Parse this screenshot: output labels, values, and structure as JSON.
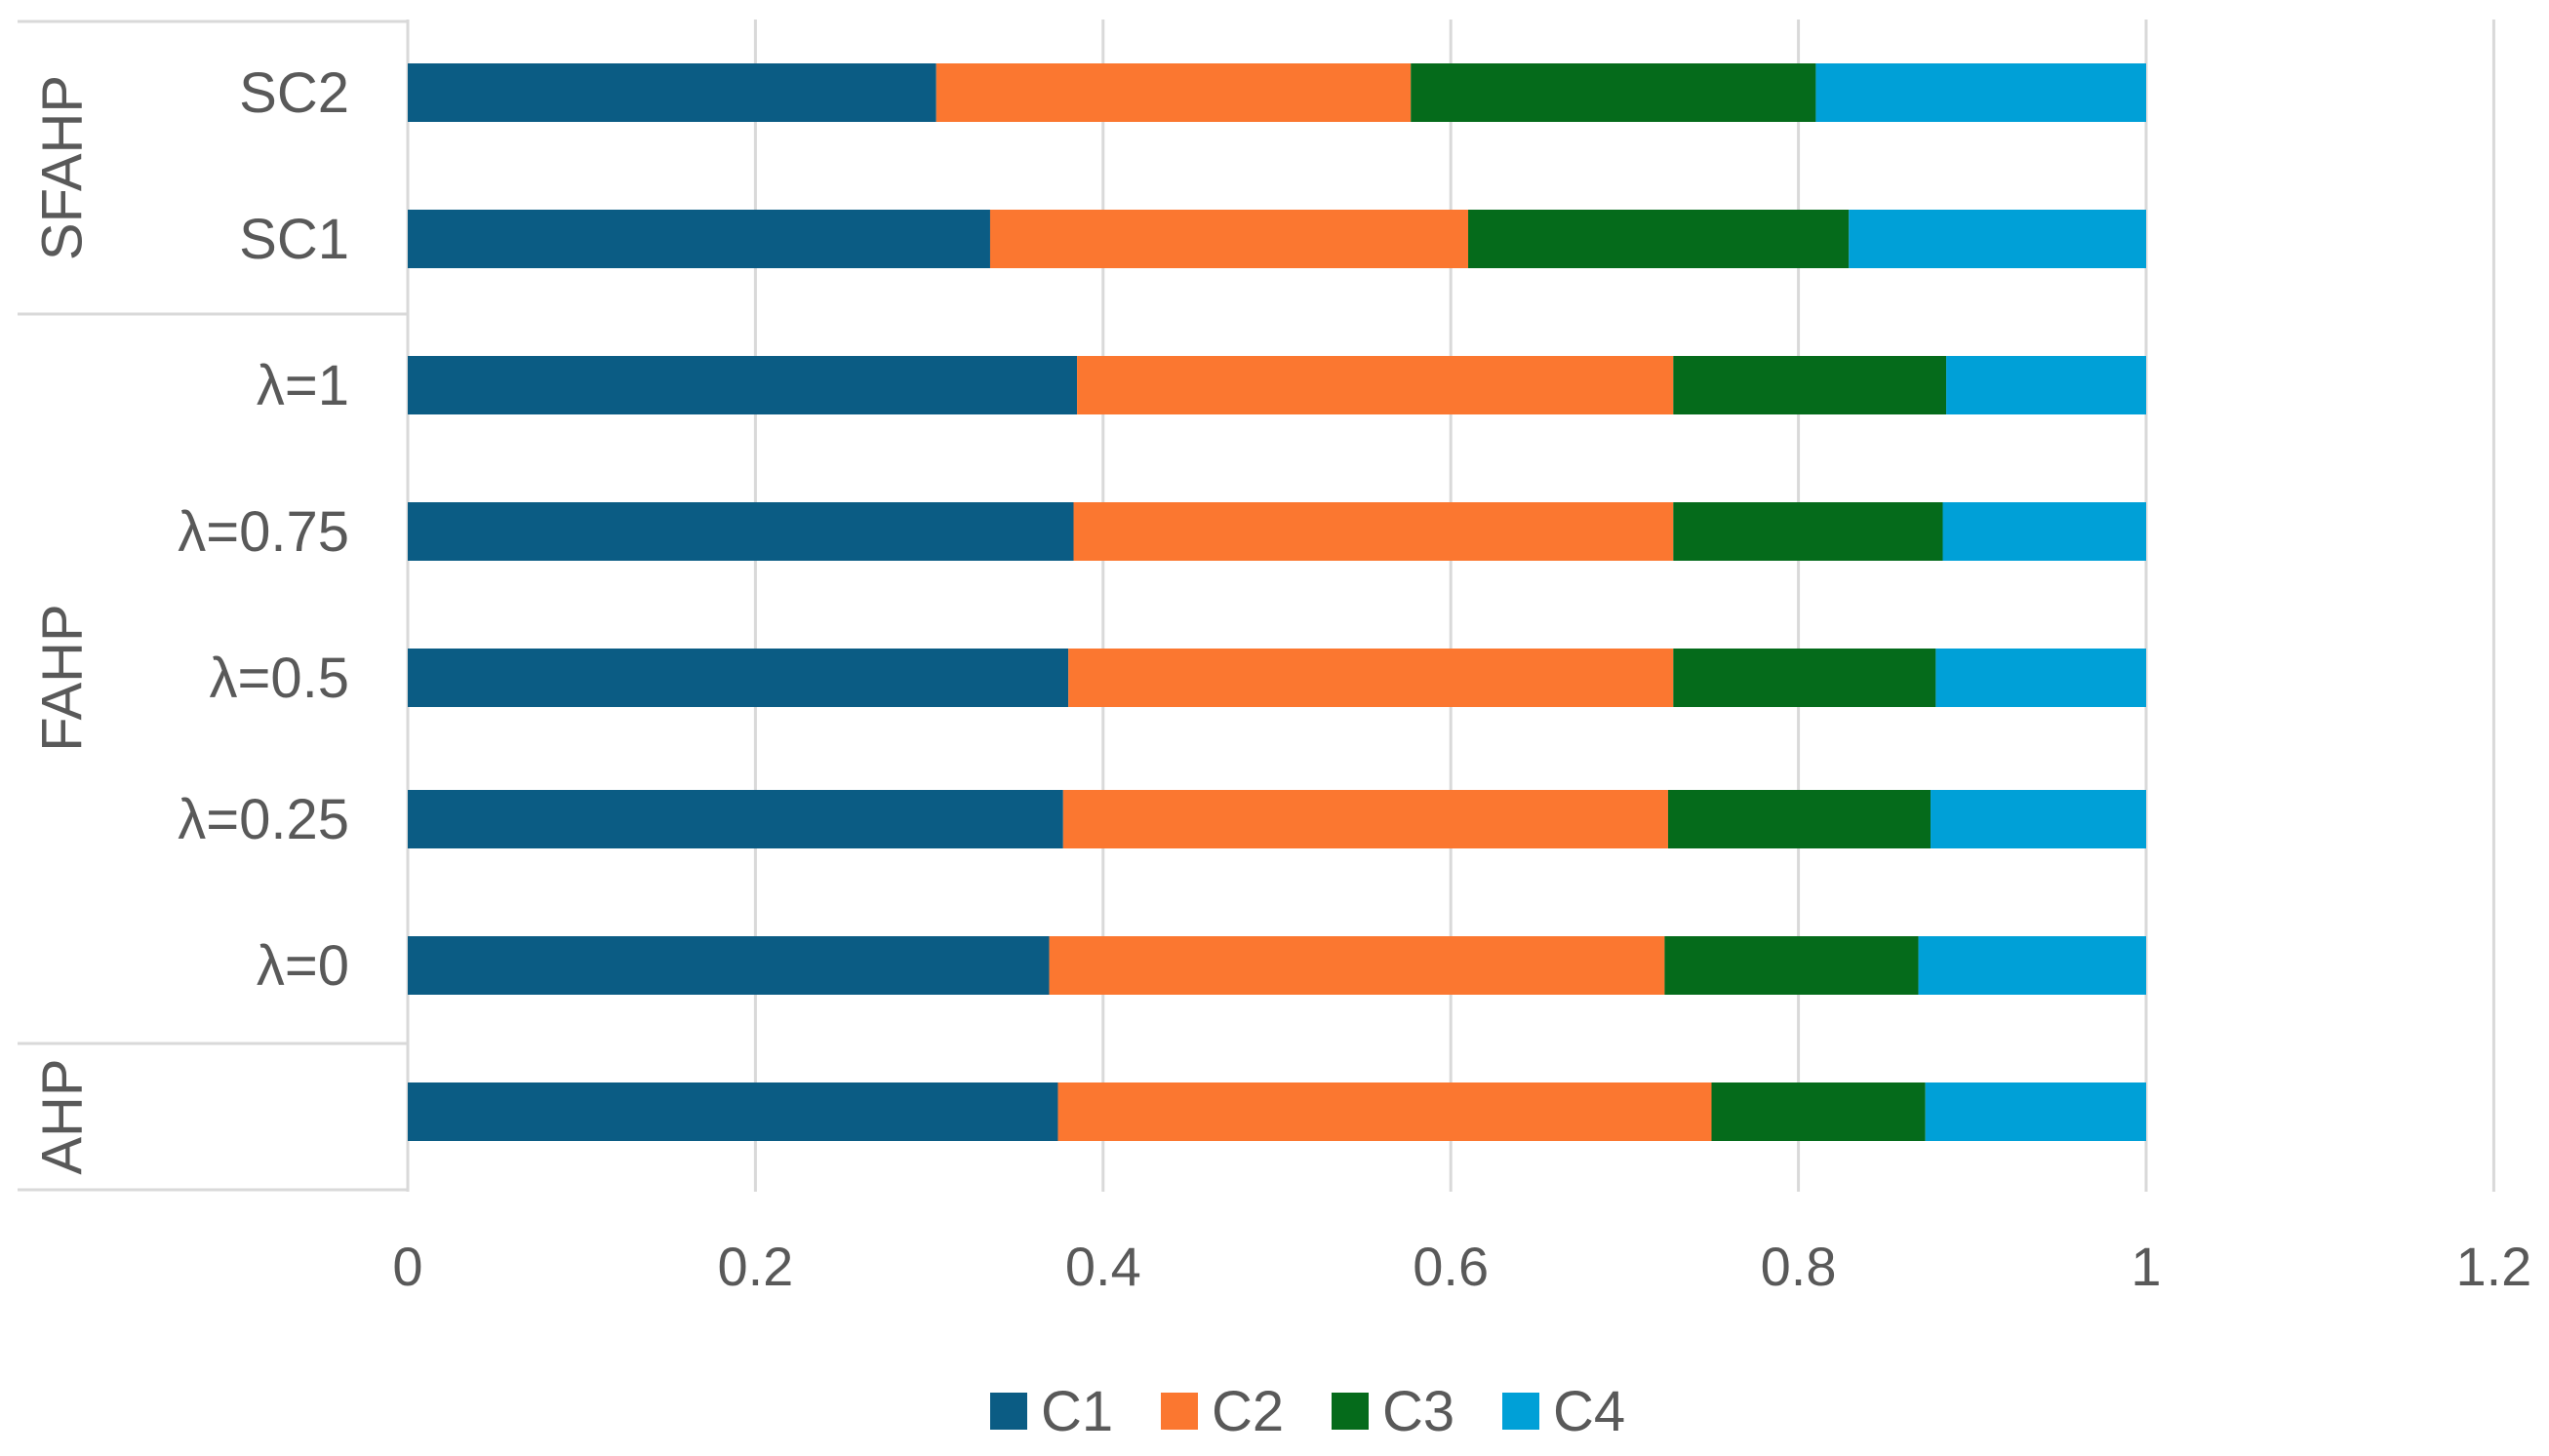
{
  "chart_data": {
    "type": "bar",
    "orientation": "horizontal",
    "stacked": true,
    "title": "",
    "xlabel": "",
    "ylabel": "",
    "xlim": [
      0,
      1.2
    ],
    "x_ticks": [
      "0",
      "0.2",
      "0.4",
      "0.6",
      "0.8",
      "1",
      "1.2"
    ],
    "x_tick_values": [
      0,
      0.2,
      0.4,
      0.6,
      0.8,
      1.0,
      1.2
    ],
    "grid": true,
    "legend_position": "bottom",
    "rows": [
      {
        "group": "SFAHP",
        "label": "SC2"
      },
      {
        "group": "SFAHP",
        "label": "SC1"
      },
      {
        "group": "FAHP",
        "label": "λ=1"
      },
      {
        "group": "FAHP",
        "label": "λ=0.75"
      },
      {
        "group": "FAHP",
        "label": "λ=0.5"
      },
      {
        "group": "FAHP",
        "label": "λ=0.25"
      },
      {
        "group": "FAHP",
        "label": "λ=0"
      },
      {
        "group": "AHP",
        "label": ""
      }
    ],
    "groups": [
      "SFAHP",
      "FAHP",
      "AHP"
    ],
    "series": [
      {
        "name": "C1",
        "color": "#0b5c84",
        "values": [
          0.304,
          0.335,
          0.385,
          0.383,
          0.38,
          0.377,
          0.369,
          0.374
        ]
      },
      {
        "name": "C2",
        "color": "#fb7730",
        "values": [
          0.273,
          0.275,
          0.343,
          0.345,
          0.348,
          0.348,
          0.354,
          0.376
        ]
      },
      {
        "name": "C3",
        "color": "#056b1b",
        "values": [
          0.233,
          0.219,
          0.157,
          0.155,
          0.151,
          0.151,
          0.146,
          0.123
        ]
      },
      {
        "name": "C4",
        "color": "#00a0d7",
        "values": [
          0.19,
          0.171,
          0.115,
          0.117,
          0.121,
          0.124,
          0.131,
          0.127
        ]
      }
    ]
  }
}
